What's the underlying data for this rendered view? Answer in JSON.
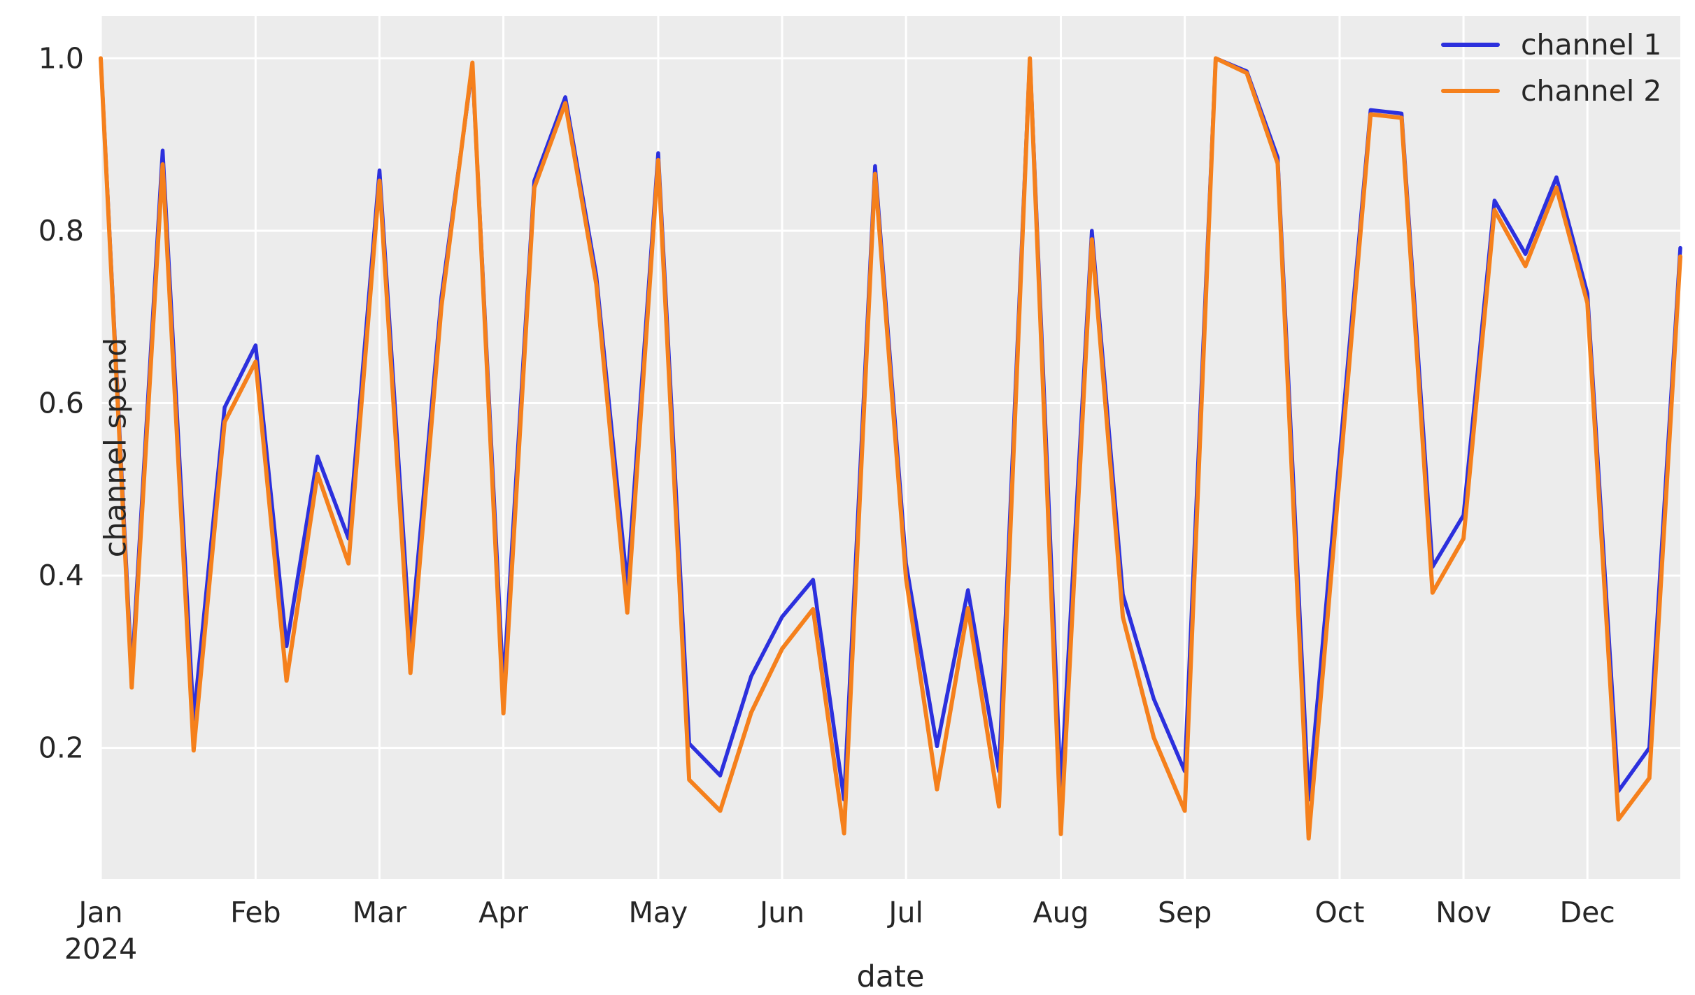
{
  "figure": {
    "background": "#ffffff",
    "plot_background": "#ececec",
    "grid_color": "#ffffff",
    "tick_color": "#262626",
    "label_color": "#262626"
  },
  "chart_data": {
    "type": "line",
    "title": "",
    "xlabel": "date",
    "ylabel": "channel spend",
    "x_start_date": "2024-01-01",
    "x_interval_days": 7,
    "n_points": 52,
    "ylim": [
      0.048,
      1.049
    ],
    "yticks": [
      0.2,
      0.4,
      0.6,
      0.8,
      1.0
    ],
    "ytick_labels": [
      "0.2",
      "0.4",
      "0.6",
      "0.8",
      "1.0"
    ],
    "xticks": [
      {
        "index": 0,
        "label": "Jan",
        "sublabel": "2024"
      },
      {
        "index": 5,
        "label": "Feb"
      },
      {
        "index": 9,
        "label": "Mar"
      },
      {
        "index": 13,
        "label": "Apr"
      },
      {
        "index": 18,
        "label": "May"
      },
      {
        "index": 22,
        "label": "Jun"
      },
      {
        "index": 26,
        "label": "Jul"
      },
      {
        "index": 31,
        "label": "Aug"
      },
      {
        "index": 35,
        "label": "Sep"
      },
      {
        "index": 40,
        "label": "Oct"
      },
      {
        "index": 44,
        "label": "Nov"
      },
      {
        "index": 48,
        "label": "Dec"
      }
    ],
    "legend": {
      "position": "upper right"
    },
    "series": [
      {
        "name": "channel 1",
        "color": "#2c30dd",
        "values": [
          1.0,
          0.285,
          0.893,
          0.233,
          0.595,
          0.667,
          0.318,
          0.538,
          0.443,
          0.87,
          0.322,
          0.723,
          0.99,
          0.27,
          0.858,
          0.955,
          0.748,
          0.388,
          0.89,
          0.205,
          0.168,
          0.283,
          0.352,
          0.395,
          0.14,
          0.875,
          0.414,
          0.202,
          0.383,
          0.173,
          1.0,
          0.15,
          0.8,
          0.378,
          0.257,
          0.173,
          1.0,
          0.985,
          0.885,
          0.14,
          0.54,
          0.94,
          0.936,
          0.41,
          0.47,
          0.835,
          0.773,
          0.862,
          0.727,
          0.15,
          0.2,
          0.78
        ]
      },
      {
        "name": "channel 2",
        "color": "#f5801c",
        "values": [
          1.0,
          0.27,
          0.877,
          0.197,
          0.578,
          0.648,
          0.278,
          0.518,
          0.414,
          0.858,
          0.287,
          0.712,
          0.995,
          0.24,
          0.85,
          0.948,
          0.738,
          0.357,
          0.882,
          0.163,
          0.127,
          0.241,
          0.315,
          0.361,
          0.101,
          0.866,
          0.397,
          0.152,
          0.362,
          0.132,
          1.0,
          0.1,
          0.79,
          0.352,
          0.212,
          0.127,
          1.0,
          0.983,
          0.878,
          0.095,
          0.515,
          0.935,
          0.931,
          0.38,
          0.443,
          0.824,
          0.759,
          0.85,
          0.716,
          0.117,
          0.165,
          0.77
        ]
      }
    ]
  }
}
